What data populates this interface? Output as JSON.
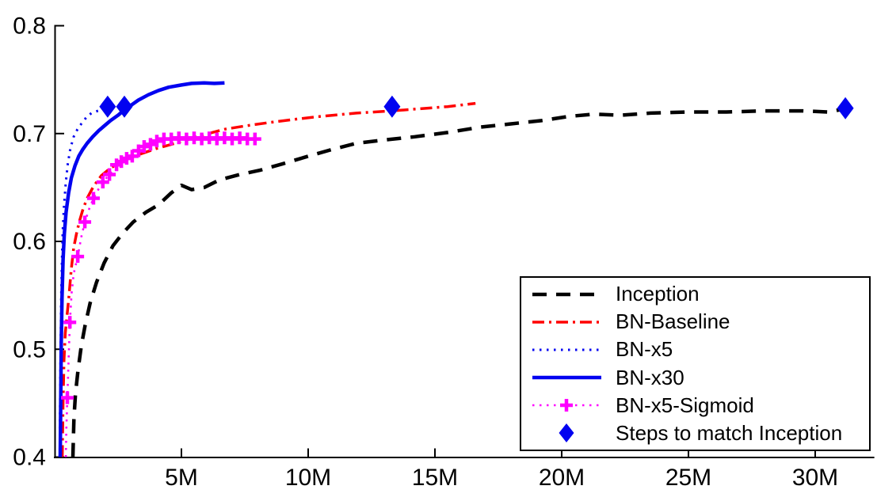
{
  "figure": {
    "background": "#ffffff",
    "axis_color": "#000000",
    "text_color": "#000000"
  },
  "chart_data": {
    "type": "line",
    "title": "",
    "xlabel": "",
    "ylabel": "",
    "grid": false,
    "legend_position": "bottom-right",
    "x_axis": {
      "unit": "M",
      "range_millions": [
        0,
        32.3
      ],
      "tick_values_millions": [
        5,
        10,
        15,
        20,
        25,
        30
      ],
      "tick_labels": [
        "5M",
        "10M",
        "15M",
        "20M",
        "25M",
        "30M"
      ]
    },
    "y_axis": {
      "range": [
        0.4,
        0.8
      ],
      "tick_values": [
        0.4,
        0.5,
        0.6,
        0.7,
        0.8
      ],
      "tick_labels": [
        "0.4",
        "0.5",
        "0.6",
        "0.7",
        "0.8"
      ]
    },
    "series": [
      {
        "name": "Inception",
        "color": "#000000",
        "style": "dashed",
        "points": [
          [
            0.72,
            0.4
          ],
          [
            0.76,
            0.435
          ],
          [
            0.82,
            0.458
          ],
          [
            0.92,
            0.48
          ],
          [
            1.05,
            0.503
          ],
          [
            1.2,
            0.522
          ],
          [
            1.4,
            0.543
          ],
          [
            1.65,
            0.562
          ],
          [
            1.95,
            0.58
          ],
          [
            2.3,
            0.596
          ],
          [
            2.7,
            0.608
          ],
          [
            3.1,
            0.618
          ],
          [
            3.6,
            0.627
          ],
          [
            4.1,
            0.634
          ],
          [
            4.6,
            0.645
          ],
          [
            5.0,
            0.652
          ],
          [
            5.4,
            0.648
          ],
          [
            5.9,
            0.65
          ],
          [
            6.5,
            0.657
          ],
          [
            7.3,
            0.662
          ],
          [
            8.1,
            0.666
          ],
          [
            9.0,
            0.672
          ],
          [
            10.0,
            0.679
          ],
          [
            10.9,
            0.685
          ],
          [
            11.9,
            0.691
          ],
          [
            13.0,
            0.694
          ],
          [
            14.2,
            0.697
          ],
          [
            15.5,
            0.701
          ],
          [
            16.8,
            0.706
          ],
          [
            18.0,
            0.709
          ],
          [
            19.2,
            0.712
          ],
          [
            20.3,
            0.716
          ],
          [
            21.3,
            0.718
          ],
          [
            22.3,
            0.717
          ],
          [
            23.5,
            0.719
          ],
          [
            25.0,
            0.72
          ],
          [
            26.5,
            0.72
          ],
          [
            28.0,
            0.721
          ],
          [
            29.5,
            0.721
          ],
          [
            30.5,
            0.72
          ],
          [
            31.19,
            0.723
          ]
        ]
      },
      {
        "name": "BN-Baseline",
        "color": "#ff0000",
        "style": "dashdot",
        "points": [
          [
            0.3,
            0.4
          ],
          [
            0.33,
            0.45
          ],
          [
            0.37,
            0.49
          ],
          [
            0.42,
            0.515
          ],
          [
            0.49,
            0.532
          ],
          [
            0.56,
            0.548
          ],
          [
            0.65,
            0.573
          ],
          [
            0.75,
            0.594
          ],
          [
            0.86,
            0.607
          ],
          [
            0.97,
            0.618
          ],
          [
            1.12,
            0.63
          ],
          [
            1.28,
            0.64
          ],
          [
            1.53,
            0.651
          ],
          [
            1.84,
            0.661
          ],
          [
            2.2,
            0.668
          ],
          [
            2.6,
            0.673
          ],
          [
            3.0,
            0.678
          ],
          [
            3.5,
            0.682
          ],
          [
            4.0,
            0.686
          ],
          [
            4.6,
            0.69
          ],
          [
            5.2,
            0.694
          ],
          [
            5.9,
            0.699
          ],
          [
            6.7,
            0.704
          ],
          [
            7.5,
            0.707
          ],
          [
            8.4,
            0.71
          ],
          [
            9.4,
            0.713
          ],
          [
            10.5,
            0.716
          ],
          [
            11.9,
            0.719
          ],
          [
            13.3,
            0.721
          ],
          [
            14.4,
            0.723
          ],
          [
            15.5,
            0.725
          ],
          [
            16.6,
            0.728
          ]
        ]
      },
      {
        "name": "BN-x5",
        "color": "#0202f0",
        "style": "dotted",
        "points": [
          [
            0.2,
            0.4
          ],
          [
            0.22,
            0.46
          ],
          [
            0.24,
            0.51
          ],
          [
            0.26,
            0.55
          ],
          [
            0.29,
            0.585
          ],
          [
            0.32,
            0.61
          ],
          [
            0.37,
            0.633
          ],
          [
            0.44,
            0.655
          ],
          [
            0.52,
            0.672
          ],
          [
            0.62,
            0.686
          ],
          [
            0.75,
            0.697
          ],
          [
            0.9,
            0.704
          ],
          [
            1.05,
            0.709
          ],
          [
            1.25,
            0.715
          ],
          [
            1.45,
            0.719
          ],
          [
            1.7,
            0.721
          ],
          [
            1.95,
            0.7228
          ],
          [
            2.15,
            0.7235
          ]
        ]
      },
      {
        "name": "BN-x30",
        "color": "#0202f0",
        "style": "solid",
        "points": [
          [
            0.22,
            0.4
          ],
          [
            0.24,
            0.455
          ],
          [
            0.26,
            0.505
          ],
          [
            0.29,
            0.548
          ],
          [
            0.33,
            0.583
          ],
          [
            0.38,
            0.607
          ],
          [
            0.45,
            0.627
          ],
          [
            0.55,
            0.645
          ],
          [
            0.66,
            0.659
          ],
          [
            0.8,
            0.67
          ],
          [
            0.95,
            0.679
          ],
          [
            1.1,
            0.685
          ],
          [
            1.28,
            0.691
          ],
          [
            1.5,
            0.697
          ],
          [
            1.75,
            0.703
          ],
          [
            2.0,
            0.708
          ],
          [
            2.2,
            0.712
          ],
          [
            2.5,
            0.717
          ],
          [
            2.75,
            0.722
          ],
          [
            3.0,
            0.726
          ],
          [
            3.3,
            0.731
          ],
          [
            3.7,
            0.736
          ],
          [
            4.1,
            0.74
          ],
          [
            4.5,
            0.743
          ],
          [
            5.0,
            0.745
          ],
          [
            5.4,
            0.7465
          ],
          [
            5.9,
            0.747
          ],
          [
            6.3,
            0.7465
          ],
          [
            6.7,
            0.747
          ]
        ]
      },
      {
        "name": "BN-x5-Sigmoid",
        "color": "#ff00ff",
        "style": "dotted-plus",
        "points": [
          [
            0.44,
            0.4
          ],
          [
            0.46,
            0.425
          ],
          [
            0.5,
            0.455
          ],
          [
            0.55,
            0.49
          ],
          [
            0.6,
            0.525
          ],
          [
            0.67,
            0.552
          ],
          [
            0.75,
            0.57
          ],
          [
            0.91,
            0.586
          ],
          [
            1.05,
            0.604
          ],
          [
            1.19,
            0.618
          ],
          [
            1.36,
            0.63
          ],
          [
            1.53,
            0.64
          ],
          [
            1.72,
            0.648
          ],
          [
            1.9,
            0.655
          ],
          [
            2.16,
            0.662
          ],
          [
            2.44,
            0.671
          ],
          [
            2.63,
            0.674
          ],
          [
            2.84,
            0.677
          ],
          [
            3.06,
            0.679
          ],
          [
            3.31,
            0.684
          ],
          [
            3.53,
            0.688
          ],
          [
            3.78,
            0.69
          ],
          [
            4.03,
            0.693
          ],
          [
            4.31,
            0.695
          ],
          [
            4.6,
            0.695
          ],
          [
            4.9,
            0.696
          ],
          [
            5.2,
            0.695
          ],
          [
            5.5,
            0.696
          ],
          [
            5.8,
            0.695
          ],
          [
            6.1,
            0.696
          ],
          [
            6.4,
            0.695
          ],
          [
            6.7,
            0.696
          ],
          [
            7.0,
            0.695
          ],
          [
            7.3,
            0.696
          ],
          [
            7.6,
            0.695
          ],
          [
            7.9,
            0.695
          ]
        ],
        "marker_points": [
          [
            0.5,
            0.455
          ],
          [
            0.6,
            0.525
          ],
          [
            0.91,
            0.586
          ],
          [
            1.19,
            0.618
          ],
          [
            1.53,
            0.64
          ],
          [
            1.9,
            0.655
          ],
          [
            2.16,
            0.662
          ],
          [
            2.44,
            0.671
          ],
          [
            2.63,
            0.674
          ],
          [
            2.84,
            0.677
          ],
          [
            3.06,
            0.679
          ],
          [
            3.31,
            0.684
          ],
          [
            3.53,
            0.688
          ],
          [
            3.78,
            0.69
          ],
          [
            4.03,
            0.693
          ],
          [
            4.31,
            0.695
          ],
          [
            4.6,
            0.695
          ],
          [
            4.9,
            0.696
          ],
          [
            5.2,
            0.695
          ],
          [
            5.5,
            0.696
          ],
          [
            5.8,
            0.695
          ],
          [
            6.1,
            0.696
          ],
          [
            6.4,
            0.695
          ],
          [
            6.7,
            0.696
          ],
          [
            7.0,
            0.695
          ],
          [
            7.3,
            0.696
          ],
          [
            7.6,
            0.695
          ],
          [
            7.9,
            0.695
          ]
        ]
      },
      {
        "name": "Steps to match Inception",
        "color": "#0202f0",
        "style": "diamond",
        "points": [
          [
            2.09,
            0.725
          ],
          [
            2.75,
            0.725
          ],
          [
            13.31,
            0.725
          ],
          [
            31.19,
            0.7235
          ]
        ]
      }
    ]
  },
  "legend": {
    "position": "bottom-right",
    "items": [
      {
        "label": "Inception"
      },
      {
        "label": "BN-Baseline"
      },
      {
        "label": "BN-x5"
      },
      {
        "label": "BN-x30"
      },
      {
        "label": "BN-x5-Sigmoid"
      },
      {
        "label": "Steps to match Inception"
      }
    ]
  }
}
